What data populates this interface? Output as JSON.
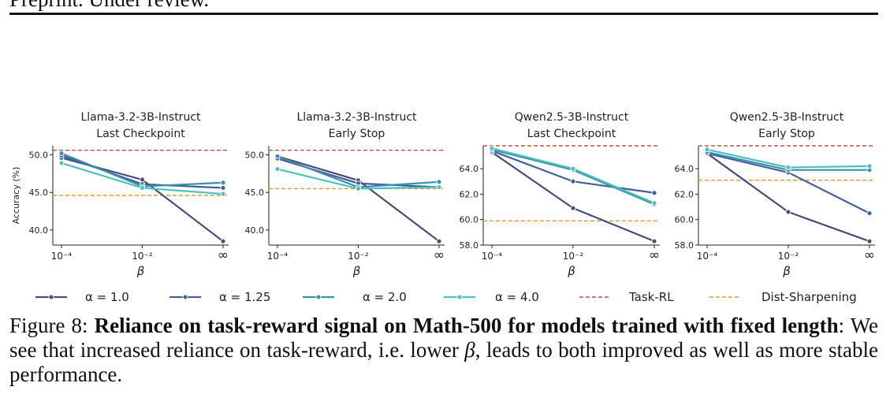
{
  "header": {
    "text": "Preprint. Under review."
  },
  "colors": {
    "alpha_1_0": "#4a4d78",
    "alpha_1_25": "#41609a",
    "alpha_2_0": "#3d8ea8",
    "alpha_4_0": "#4bc1c1",
    "task_rl": "#c0504d",
    "dist_sharpening": "#e69a25"
  },
  "chart_data": [
    {
      "type": "line",
      "title": [
        "Llama-3.2-3B-Instruct",
        "Last Checkpoint"
      ],
      "xlabel": "β",
      "ylabel": "Accuracy (%)",
      "x": [
        "10⁻⁴",
        "10⁻²",
        "∞"
      ],
      "yticks": [
        "40.0",
        "45.0",
        "50.0"
      ],
      "ylim": [
        38.0,
        51.2
      ],
      "series": [
        {
          "name": "α = 1.0",
          "values": [
            49.6,
            46.7,
            38.5
          ]
        },
        {
          "name": "α = 1.25",
          "values": [
            49.9,
            46.1,
            45.6
          ]
        },
        {
          "name": "α = 2.0",
          "values": [
            50.2,
            45.8,
            46.3
          ]
        },
        {
          "name": "α = 4.0",
          "values": [
            48.9,
            45.6,
            44.8
          ]
        }
      ],
      "hlines": [
        {
          "name": "Task-RL",
          "value": 50.6
        },
        {
          "name": "Dist-Sharpening",
          "value": 44.6
        }
      ]
    },
    {
      "type": "line",
      "title": [
        "Llama-3.2-3B-Instruct",
        "Early Stop"
      ],
      "xlabel": "β",
      "ylabel": "",
      "x": [
        "10⁻⁴",
        "10⁻²",
        "∞"
      ],
      "yticks": [
        "40.0",
        "45.0",
        "50.0"
      ],
      "ylim": [
        38.0,
        51.2
      ],
      "series": [
        {
          "name": "α = 1.0",
          "values": [
            49.8,
            46.6,
            38.5
          ]
        },
        {
          "name": "α = 1.25",
          "values": [
            49.5,
            46.2,
            45.7
          ]
        },
        {
          "name": "α = 2.0",
          "values": [
            49.8,
            45.7,
            46.4
          ]
        },
        {
          "name": "α = 4.0",
          "values": [
            48.1,
            45.5,
            45.7
          ]
        }
      ],
      "hlines": [
        {
          "name": "Task-RL",
          "value": 50.6
        },
        {
          "name": "Dist-Sharpening",
          "value": 45.5
        }
      ]
    },
    {
      "type": "line",
      "title": [
        "Qwen2.5-3B-Instruct",
        "Last Checkpoint"
      ],
      "xlabel": "β",
      "ylabel": "",
      "x": [
        "10⁻⁴",
        "10⁻²",
        "∞"
      ],
      "yticks": [
        "58.0",
        "60.0",
        "62.0",
        "64.0"
      ],
      "ylim": [
        58.0,
        65.8
      ],
      "series": [
        {
          "name": "α = 1.0",
          "values": [
            65.3,
            60.9,
            58.3
          ]
        },
        {
          "name": "α = 1.25",
          "values": [
            65.4,
            63.0,
            62.1
          ]
        },
        {
          "name": "α = 2.0",
          "values": [
            65.5,
            63.9,
            61.2
          ]
        },
        {
          "name": "α = 4.0",
          "values": [
            65.6,
            64.0,
            61.3
          ]
        }
      ],
      "hlines": [
        {
          "name": "Task-RL",
          "value": 65.8
        },
        {
          "name": "Dist-Sharpening",
          "value": 59.9
        }
      ]
    },
    {
      "type": "line",
      "title": [
        "Qwen2.5-3B-Instruct",
        "Early Stop"
      ],
      "xlabel": "β",
      "ylabel": "",
      "x": [
        "10⁻⁴",
        "10⁻²",
        "∞"
      ],
      "yticks": [
        "58.0",
        "60.0",
        "62.0",
        "64.0"
      ],
      "ylim": [
        58.0,
        65.8
      ],
      "series": [
        {
          "name": "α = 1.0",
          "values": [
            65.2,
            60.6,
            58.3
          ]
        },
        {
          "name": "α = 1.25",
          "values": [
            65.2,
            63.7,
            60.5
          ]
        },
        {
          "name": "α = 2.0",
          "values": [
            65.3,
            63.9,
            63.9
          ]
        },
        {
          "name": "α = 4.0",
          "values": [
            65.5,
            64.1,
            64.2
          ]
        }
      ],
      "hlines": [
        {
          "name": "Task-RL",
          "value": 65.8
        },
        {
          "name": "Dist-Sharpening",
          "value": 63.1
        }
      ]
    }
  ],
  "legend": [
    {
      "label": "α = 1.0",
      "style": "line-marker",
      "color_key": "alpha_1_0"
    },
    {
      "label": "α = 1.25",
      "style": "line-marker",
      "color_key": "alpha_1_25"
    },
    {
      "label": "α = 2.0",
      "style": "line-marker",
      "color_key": "alpha_2_0"
    },
    {
      "label": "α = 4.0",
      "style": "line-marker",
      "color_key": "alpha_4_0"
    },
    {
      "label": "Task-RL",
      "style": "dashed",
      "color_key": "task_rl"
    },
    {
      "label": "Dist-Sharpening",
      "style": "dashed",
      "color_key": "dist_sharpening"
    }
  ],
  "caption": {
    "label": "Figure 8:",
    "bold": "Reliance on task-reward signal on Math-500 for models trained with fixed length",
    "text_1": ": We see that increased reliance on task-reward, i.e. lower ",
    "beta": "β",
    "text_2": ", leads to both improved as well as more stable performance."
  }
}
